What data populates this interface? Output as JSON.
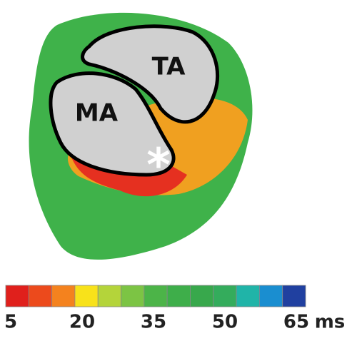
{
  "map": {
    "labels": [
      "TA",
      "MA",
      "*"
    ]
  },
  "colorbar": {
    "ticks": [
      5,
      20,
      35,
      50,
      65
    ],
    "unit": "ms",
    "colors": [
      "#e0201c",
      "#ec4a1c",
      "#f4821e",
      "#f8e21a",
      "#b4d43a",
      "#7cc444",
      "#4cb448",
      "#3eae4a",
      "#38a84c",
      "#34ac5c",
      "#20b4a8",
      "#1a8ed0",
      "#2040a0"
    ]
  }
}
